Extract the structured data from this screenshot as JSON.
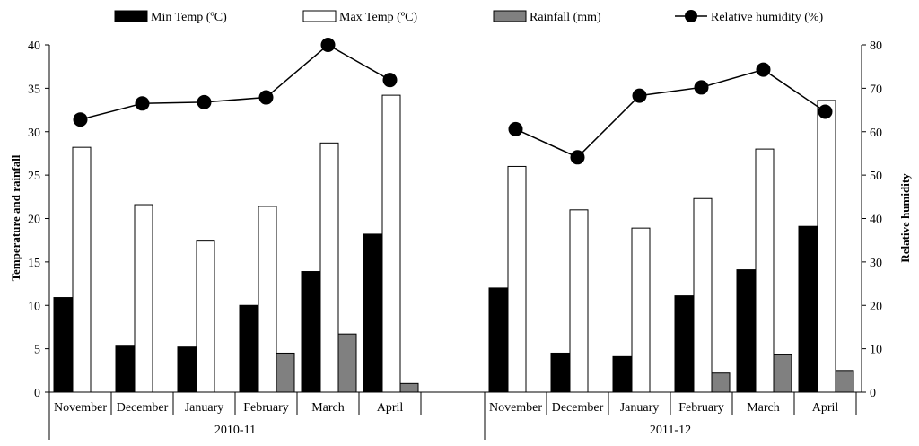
{
  "chart_data": {
    "type": "bar+line",
    "title": "",
    "ylabel_left": "Temperature and rainfall",
    "ylabel_right": "Relative humidity",
    "ylim_left": [
      0,
      40
    ],
    "ylim_right": [
      0,
      80
    ],
    "yticks_left": [
      0,
      5,
      10,
      15,
      20,
      25,
      30,
      35,
      40
    ],
    "yticks_right": [
      0,
      10,
      20,
      30,
      40,
      50,
      60,
      70,
      80
    ],
    "legend": [
      {
        "key": "min",
        "label": "Min Temp (ºC)",
        "style": "bar-black"
      },
      {
        "key": "max",
        "label": "Max Temp  (ºC)",
        "style": "bar-white"
      },
      {
        "key": "rain",
        "label": "Rainfall (mm)",
        "style": "bar-gray"
      },
      {
        "key": "rh",
        "label": "Relative humidity (%)",
        "style": "line-marker"
      }
    ],
    "colors": {
      "min": "#000000",
      "max": "#ffffff",
      "rain": "#808080",
      "rh": "#000000"
    },
    "groups": [
      {
        "label": "2010-11",
        "categories": [
          "November",
          "December",
          "January",
          "February",
          "March",
          "April"
        ],
        "series": [
          {
            "name": "Min Temp (ºC)",
            "key": "min",
            "axis": "left",
            "values": [
              10.9,
              5.3,
              5.2,
              10.0,
              13.9,
              18.2
            ]
          },
          {
            "name": "Max Temp  (ºC)",
            "key": "max",
            "axis": "left",
            "values": [
              28.2,
              21.6,
              17.4,
              21.4,
              28.7,
              34.2
            ]
          },
          {
            "name": "Rainfall (mm)",
            "key": "rain",
            "axis": "left",
            "values": [
              0,
              0,
              0,
              4.5,
              6.7,
              1.0
            ]
          },
          {
            "name": "Relative humidity (%)",
            "key": "rh",
            "axis": "right",
            "values": [
              62.8,
              66.5,
              66.8,
              67.9,
              80.0,
              71.9
            ]
          }
        ]
      },
      {
        "label": "2011-12",
        "categories": [
          "November",
          "December",
          "January",
          "February",
          "March",
          "April"
        ],
        "series": [
          {
            "name": "Min Temp (ºC)",
            "key": "min",
            "axis": "left",
            "values": [
              12.0,
              4.5,
              4.1,
              11.1,
              14.1,
              19.1
            ]
          },
          {
            "name": "Max Temp  (ºC)",
            "key": "max",
            "axis": "left",
            "values": [
              26.0,
              21.0,
              18.9,
              22.3,
              28.0,
              33.6
            ]
          },
          {
            "name": "Rainfall (mm)",
            "key": "rain",
            "axis": "left",
            "values": [
              0,
              0,
              0,
              2.2,
              4.3,
              2.5
            ]
          },
          {
            "name": "Relative humidity (%)",
            "key": "rh",
            "axis": "right",
            "values": [
              60.6,
              54.1,
              68.3,
              70.2,
              74.3,
              64.6
            ]
          }
        ]
      }
    ]
  }
}
